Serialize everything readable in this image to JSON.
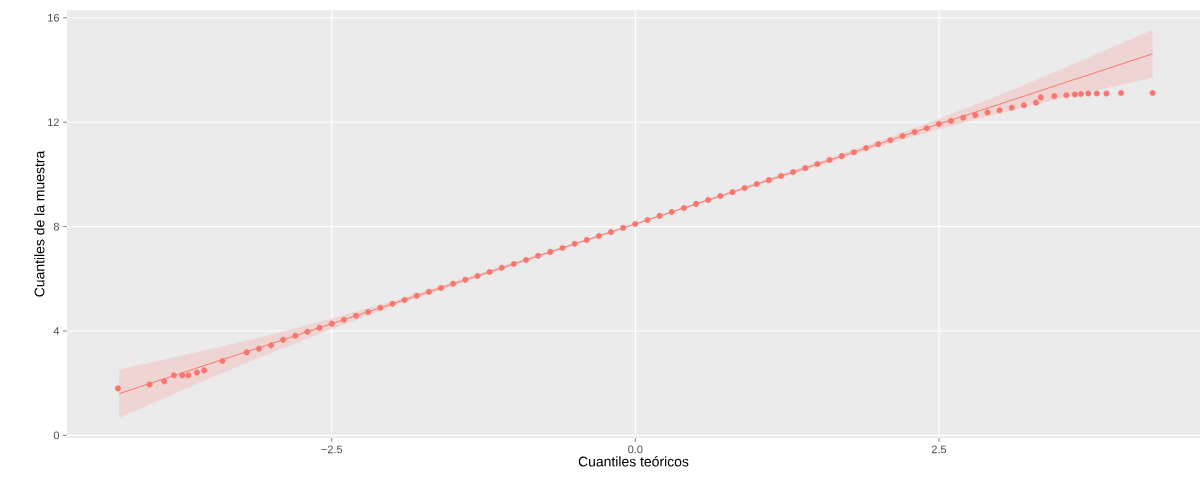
{
  "chart_data": {
    "type": "scatter",
    "xlabel": "Cuantiles teóricos",
    "ylabel": "Cuantiles de la muestra",
    "xlim": [
      -4.68,
      4.65
    ],
    "ylim": [
      -0.1,
      16.3
    ],
    "xticks": [
      {
        "value": -2.5,
        "label": "−2.5"
      },
      {
        "value": 0,
        "label": "0.0"
      },
      {
        "value": 2.5,
        "label": "2.5"
      }
    ],
    "yticks": [
      0,
      4,
      8,
      12,
      16
    ],
    "grid": true,
    "series": [
      {
        "marker": "circle",
        "color": "#f8766d",
        "x": [
          -4.26,
          -4.0,
          -3.88,
          -3.8,
          -3.73,
          -3.68,
          -3.61,
          -3.55,
          -3.4,
          -3.2,
          -3.1,
          -3.0,
          -2.9,
          -2.8,
          -2.7,
          -2.6,
          -2.5,
          -2.4,
          -2.3,
          -2.2,
          -2.1,
          -2.0,
          -1.9,
          -1.8,
          -1.7,
          -1.6,
          -1.5,
          -1.4,
          -1.3,
          -1.2,
          -1.1,
          -1.0,
          -0.9,
          -0.8,
          -0.7,
          -0.6,
          -0.5,
          -0.4,
          -0.3,
          -0.2,
          -0.1,
          0.0,
          0.1,
          0.2,
          0.3,
          0.4,
          0.5,
          0.6,
          0.7,
          0.8,
          0.9,
          1.0,
          1.1,
          1.2,
          1.3,
          1.4,
          1.5,
          1.6,
          1.7,
          1.8,
          1.9,
          2.0,
          2.1,
          2.2,
          2.3,
          2.4,
          2.5,
          2.6,
          2.7,
          2.8,
          2.9,
          3.0,
          3.1,
          3.2,
          3.3,
          3.34,
          3.45,
          3.55,
          3.62,
          3.67,
          3.73,
          3.8,
          3.88,
          4.0,
          4.26
        ],
        "values": [
          1.8,
          1.95,
          2.07,
          2.3,
          2.3,
          2.3,
          2.41,
          2.49,
          2.85,
          3.18,
          3.32,
          3.45,
          3.66,
          3.82,
          3.97,
          4.12,
          4.28,
          4.43,
          4.58,
          4.73,
          4.89,
          5.04,
          5.19,
          5.35,
          5.5,
          5.65,
          5.81,
          5.96,
          6.11,
          6.26,
          6.42,
          6.57,
          6.72,
          6.88,
          7.03,
          7.18,
          7.34,
          7.49,
          7.64,
          7.79,
          7.95,
          8.1,
          8.25,
          8.41,
          8.56,
          8.71,
          8.87,
          9.02,
          9.17,
          9.32,
          9.48,
          9.63,
          9.78,
          9.94,
          10.09,
          10.24,
          10.4,
          10.55,
          10.7,
          10.85,
          11.01,
          11.16,
          11.31,
          11.47,
          11.62,
          11.77,
          11.93,
          12.05,
          12.17,
          12.27,
          12.37,
          12.46,
          12.55,
          12.65,
          12.75,
          12.95,
          13.0,
          13.03,
          13.06,
          13.08,
          13.1,
          13.1,
          13.1,
          13.12,
          13.12
        ]
      },
      {
        "type": "line",
        "marker": "none",
        "color": "#f8766d",
        "x": [
          -4.25,
          -3.5,
          -3.0,
          -2.5,
          -2.0,
          0.0,
          2.0,
          2.5,
          3.0,
          3.5,
          4.26
        ],
        "values": [
          1.6,
          2.75,
          3.51,
          4.28,
          5.04,
          8.1,
          11.16,
          11.93,
          12.69,
          13.46,
          14.62
        ],
        "lower": [
          0.68,
          2.2,
          3.16,
          4.08,
          4.94,
          8.07,
          11.06,
          11.73,
          12.34,
          12.91,
          13.7
        ],
        "upper": [
          2.52,
          3.3,
          3.86,
          4.48,
          5.14,
          8.13,
          11.26,
          12.13,
          13.04,
          14.01,
          15.54
        ]
      }
    ]
  }
}
